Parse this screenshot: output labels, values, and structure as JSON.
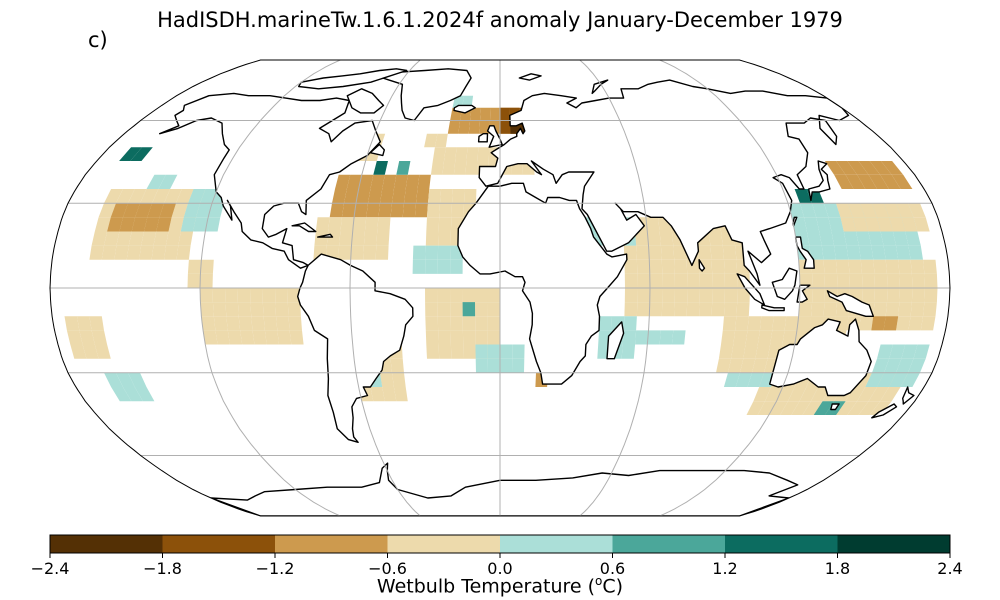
{
  "figure": {
    "title": "HadISDH.marineTw.1.6.1.2024f anomaly January-December 1979",
    "panel_label": "c)"
  },
  "map": {
    "projection": "Robinson",
    "graticule": true,
    "land_color": "#ffffff",
    "ocean_missing_color": "#ffffff"
  },
  "colorbar": {
    "label_prefix": "Wetbulb Temperature (",
    "label_unit_sup": "o",
    "label_suffix": "C)",
    "ticks": [
      "−2.4",
      "−1.8",
      "−1.2",
      "−0.6",
      "0.0",
      "0.6",
      "1.2",
      "1.8",
      "2.4"
    ],
    "bins": [
      {
        "range": [
          -2.4,
          -1.8
        ],
        "color": "#543005"
      },
      {
        "range": [
          -1.8,
          -1.2
        ],
        "color": "#8c510a"
      },
      {
        "range": [
          -1.2,
          -0.6
        ],
        "color": "#cd9a4e"
      },
      {
        "range": [
          -0.6,
          0.0
        ],
        "color": "#eddaac"
      },
      {
        "range": [
          0.0,
          0.6
        ],
        "color": "#abdfd8"
      },
      {
        "range": [
          0.6,
          1.2
        ],
        "color": "#4ba79a"
      },
      {
        "range": [
          1.2,
          1.8
        ],
        "color": "#0c6c60"
      },
      {
        "range": [
          1.8,
          2.4
        ],
        "color": "#003c30"
      }
    ]
  },
  "chart_data": {
    "type": "heatmap",
    "title": "HadISDH.marineTw.1.6.1.2024f anomaly January-December 1979",
    "variable": "Wetbulb Temperature anomaly",
    "unit": "oC",
    "vmin": -2.4,
    "vmax": 2.4,
    "grid_resolution_deg": 5,
    "regions": [
      {
        "lon": [
          -165,
          -125
        ],
        "lat": [
          10,
          35
        ],
        "value": -0.3
      },
      {
        "lon": [
          -160,
          -135
        ],
        "lat": [
          20,
          30
        ],
        "value": -0.9
      },
      {
        "lon": [
          -130,
          -115
        ],
        "lat": [
          20,
          35
        ],
        "value": 0.3
      },
      {
        "lon": [
          -170,
          -160
        ],
        "lat": [
          45,
          50
        ],
        "value": 1.4
      },
      {
        "lon": [
          -150,
          -140
        ],
        "lat": [
          35,
          40
        ],
        "value": 0.3
      },
      {
        "lon": [
          -125,
          -115
        ],
        "lat": [
          0,
          10
        ],
        "value": -0.3
      },
      {
        "lon": [
          -70,
          -30
        ],
        "lat": [
          25,
          40
        ],
        "value": -0.9
      },
      {
        "lon": [
          -75,
          -45
        ],
        "lat": [
          10,
          25
        ],
        "value": -0.3
      },
      {
        "lon": [
          -70,
          -55
        ],
        "lat": [
          45,
          55
        ],
        "value": -0.3
      },
      {
        "lon": [
          -55,
          -50
        ],
        "lat": [
          40,
          45
        ],
        "value": 1.4
      },
      {
        "lon": [
          -45,
          -40
        ],
        "lat": [
          40,
          45
        ],
        "value": 0.9
      },
      {
        "lon": [
          -35,
          -25
        ],
        "lat": [
          50,
          55
        ],
        "value": -0.3
      },
      {
        "lon": [
          -25,
          10
        ],
        "lat": [
          55,
          65
        ],
        "value": -0.9
      },
      {
        "lon": [
          0,
          15
        ],
        "lat": [
          55,
          65
        ],
        "value": -1.5
      },
      {
        "lon": [
          5,
          15
        ],
        "lat": [
          55,
          60
        ],
        "value": -2.1
      },
      {
        "lon": [
          15,
          25
        ],
        "lat": [
          60,
          65
        ],
        "value": -0.9
      },
      {
        "lon": [
          -25,
          -15
        ],
        "lat": [
          65,
          70
        ],
        "value": 0.3
      },
      {
        "lon": [
          -30,
          15
        ],
        "lat": [
          40,
          50
        ],
        "value": -0.3
      },
      {
        "lon": [
          -30,
          -10
        ],
        "lat": [
          15,
          35
        ],
        "value": -0.3
      },
      {
        "lon": [
          -35,
          -15
        ],
        "lat": [
          5,
          15
        ],
        "value": 0.3
      },
      {
        "lon": [
          -30,
          0
        ],
        "lat": [
          -25,
          0
        ],
        "value": -0.3
      },
      {
        "lon": [
          -15,
          -10
        ],
        "lat": [
          -10,
          -5
        ],
        "value": 0.9
      },
      {
        "lon": [
          -10,
          10
        ],
        "lat": [
          -30,
          -20
        ],
        "value": 0.3
      },
      {
        "lon": [
          15,
          20
        ],
        "lat": [
          -35,
          -30
        ],
        "value": -0.9
      },
      {
        "lon": [
          -60,
          -40
        ],
        "lat": [
          -40,
          -20
        ],
        "value": -0.3
      },
      {
        "lon": [
          -60,
          -50
        ],
        "lat": [
          -35,
          -30
        ],
        "value": 0.3
      },
      {
        "lon": [
          -120,
          -80
        ],
        "lat": [
          -20,
          0
        ],
        "value": -0.3
      },
      {
        "lon": [
          -175,
          -160
        ],
        "lat": [
          -25,
          -10
        ],
        "value": -0.3
      },
      {
        "lon": [
          -165,
          -150
        ],
        "lat": [
          -40,
          -30
        ],
        "value": 0.3
      },
      {
        "lon": [
          50,
          100
        ],
        "lat": [
          -10,
          25
        ],
        "value": -0.3
      },
      {
        "lon": [
          40,
          55
        ],
        "lat": [
          -25,
          -10
        ],
        "value": 0.3
      },
      {
        "lon": [
          55,
          75
        ],
        "lat": [
          -20,
          -15
        ],
        "value": 0.3
      },
      {
        "lon": [
          35,
          55
        ],
        "lat": [
          15,
          25
        ],
        "value": 0.3
      },
      {
        "lon": [
          120,
          170
        ],
        "lat": [
          10,
          30
        ],
        "value": 0.3
      },
      {
        "lon": [
          140,
          175
        ],
        "lat": [
          20,
          30
        ],
        "value": -0.3
      },
      {
        "lon": [
          145,
          175
        ],
        "lat": [
          35,
          45
        ],
        "value": -0.9
      },
      {
        "lon": [
          125,
          135
        ],
        "lat": [
          30,
          35
        ],
        "value": 1.4
      },
      {
        "lon": [
          120,
          175
        ],
        "lat": [
          -15,
          10
        ],
        "value": -0.3
      },
      {
        "lon": [
          150,
          160
        ],
        "lat": [
          -15,
          -10
        ],
        "value": -0.9
      },
      {
        "lon": [
          90,
          140
        ],
        "lat": [
          -30,
          -10
        ],
        "value": -0.3
      },
      {
        "lon": [
          110,
          170
        ],
        "lat": [
          -45,
          -30
        ],
        "value": -0.3
      },
      {
        "lon": [
          155,
          175
        ],
        "lat": [
          -35,
          -20
        ],
        "value": 0.3
      },
      {
        "lon": [
          140,
          150
        ],
        "lat": [
          -45,
          -40
        ],
        "value": 0.9
      },
      {
        "lon": [
          95,
          115
        ],
        "lat": [
          -35,
          -30
        ],
        "value": 0.3
      }
    ]
  }
}
